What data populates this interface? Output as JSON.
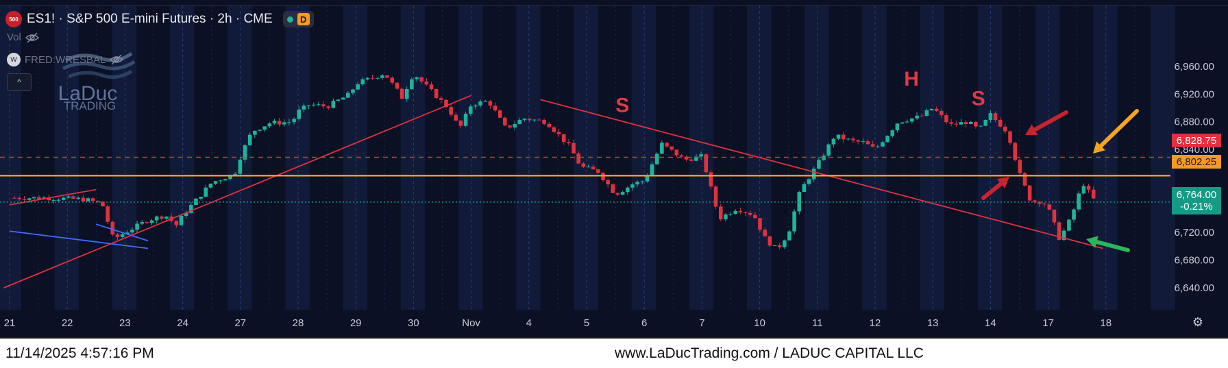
{
  "header": {
    "symbol_icon": "500",
    "title": "ES1! · S&P 500 E-mini Futures · 2h · CME",
    "status_dot_color": "#1fb39a",
    "timeframe_badge": "D"
  },
  "indicators": [
    {
      "label": "Vol",
      "icon": "eye-off-icon"
    },
    {
      "label": "FRED:WRESBAL",
      "icon": "eye-off-icon"
    }
  ],
  "watermark": {
    "line1": "LaDuc",
    "line2": "TRADING"
  },
  "footer": {
    "timestamp": "11/14/2025 4:57:16 PM",
    "brand": "www.LaDucTrading.com / LADUC CAPITAL LLC"
  },
  "price_labels": {
    "upper": {
      "value": "6,828.75",
      "color": "#e0313f"
    },
    "support": {
      "value": "6,802.25",
      "color": "#f59a23"
    },
    "last": {
      "value": "6,764.00",
      "change": "-0.21%",
      "color": "#159a86"
    }
  },
  "colors": {
    "up": "#1fb39a",
    "down": "#e0313f",
    "support": "#f59a23",
    "trend": "#e0313f",
    "channel": "#3c6bff"
  },
  "chart_data": {
    "type": "candlestick",
    "x_tick_labels": [
      "21",
      "22",
      "23",
      "24",
      "27",
      "28",
      "29",
      "30",
      "Nov",
      "4",
      "5",
      "6",
      "7",
      "10",
      "11",
      "12",
      "13",
      "14",
      "17",
      "18"
    ],
    "y_ticks": [
      6960,
      6920,
      6880,
      6840,
      6720,
      6680,
      6640
    ],
    "y_tick_labels": [
      "6,960.00",
      "6,920.00",
      "6,880.00",
      "6,840.00",
      "6,720.00",
      "6,680.00",
      "6,640.00"
    ],
    "ylim": [
      6618,
      6982
    ],
    "horizontal_lines": [
      {
        "value": 6828.75,
        "style": "dashed",
        "color": "#e0313f"
      },
      {
        "value": 6802.25,
        "style": "solid",
        "color": "#f59a23"
      },
      {
        "value": 6764.0,
        "style": "dotted",
        "color": "#159a86"
      }
    ],
    "pattern_labels": [
      "S",
      "H",
      "S"
    ],
    "close_path": [
      [
        0,
        6770
      ],
      [
        0.6,
        6770
      ],
      [
        1.3,
        6768
      ],
      [
        1.6,
        6762
      ],
      [
        1.8,
        6710
      ],
      [
        2.0,
        6720
      ],
      [
        2.4,
        6738
      ],
      [
        2.7,
        6745
      ],
      [
        2.9,
        6730
      ],
      [
        3.0,
        6745
      ],
      [
        3.5,
        6792
      ],
      [
        3.9,
        6805
      ],
      [
        4.0,
        6830
      ],
      [
        4.2,
        6866
      ],
      [
        4.5,
        6878
      ],
      [
        4.9,
        6880
      ],
      [
        5.0,
        6895
      ],
      [
        5.2,
        6905
      ],
      [
        5.5,
        6902
      ],
      [
        5.9,
        6920
      ],
      [
        6.0,
        6935
      ],
      [
        6.5,
        6950
      ],
      [
        6.8,
        6915
      ],
      [
        7.0,
        6950
      ],
      [
        7.3,
        6925
      ],
      [
        7.6,
        6900
      ],
      [
        7.8,
        6870
      ],
      [
        8.0,
        6905
      ],
      [
        8.3,
        6910
      ],
      [
        8.6,
        6870
      ],
      [
        8.9,
        6885
      ],
      [
        9.3,
        6880
      ],
      [
        9.7,
        6845
      ],
      [
        9.9,
        6815
      ],
      [
        10.2,
        6808
      ],
      [
        10.5,
        6775
      ],
      [
        10.8,
        6790
      ],
      [
        11.0,
        6795
      ],
      [
        11.3,
        6848
      ],
      [
        11.7,
        6825
      ],
      [
        12.0,
        6830
      ],
      [
        12.3,
        6740
      ],
      [
        12.6,
        6755
      ],
      [
        12.9,
        6745
      ],
      [
        13.1,
        6710
      ],
      [
        13.3,
        6695
      ],
      [
        13.5,
        6720
      ],
      [
        13.7,
        6780
      ],
      [
        14.0,
        6818
      ],
      [
        14.3,
        6860
      ],
      [
        14.6,
        6852
      ],
      [
        14.8,
        6850
      ],
      [
        15.0,
        6840
      ],
      [
        15.4,
        6880
      ],
      [
        15.8,
        6888
      ],
      [
        16.0,
        6900
      ],
      [
        16.3,
        6875
      ],
      [
        16.6,
        6880
      ],
      [
        16.8,
        6868
      ],
      [
        17.0,
        6890
      ],
      [
        17.3,
        6865
      ],
      [
        17.5,
        6805
      ],
      [
        17.7,
        6765
      ],
      [
        17.9,
        6765
      ],
      [
        18.0,
        6755
      ],
      [
        18.2,
        6710
      ],
      [
        18.4,
        6742
      ],
      [
        18.6,
        6792
      ],
      [
        18.8,
        6766
      ]
    ],
    "trendlines": [
      {
        "from": [
          -0.1,
          6640
        ],
        "to": [
          8.0,
          6918
        ]
      },
      {
        "from": [
          9.2,
          6912
        ],
        "to": [
          18.95,
          6697
        ]
      },
      {
        "from": [
          1.5,
          6732
        ],
        "to": [
          2.4,
          6708
        ]
      },
      {
        "from": [
          0.0,
          6722
        ],
        "to": [
          2.4,
          6697
        ]
      },
      {
        "from": [
          0.0,
          6760
        ],
        "to": [
          1.5,
          6782
        ]
      }
    ]
  }
}
